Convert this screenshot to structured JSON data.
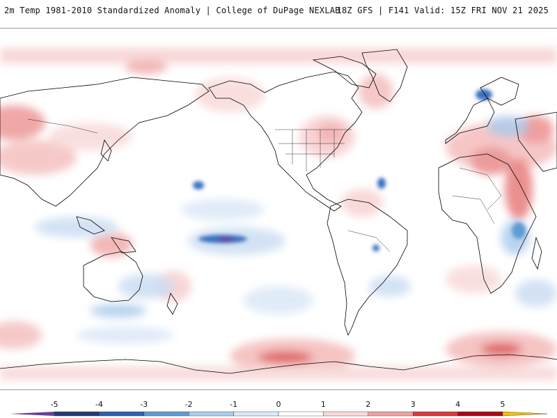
{
  "header": {
    "title": "2m Temp 1981-2010 Standardized Anomaly | College of DuPage NEXLAB",
    "run_info": "18Z GFS | F141 Valid: 15Z FRI NOV 21 2025"
  },
  "colorbar": {
    "ticks": [
      "-5",
      "-4",
      "-3",
      "-2",
      "-1",
      "0",
      "1",
      "2",
      "3",
      "4",
      "5"
    ],
    "colors": [
      "#6a3d9a",
      "#233a7a",
      "#2b62b0",
      "#5d9bd6",
      "#a9cdee",
      "#dde9f7",
      "#ffffff",
      "#fbdada",
      "#efa0a0",
      "#d83a3a",
      "#a80a18",
      "#7a0010",
      "#f2c200"
    ]
  },
  "map": {
    "ocean_color": "#ffffff",
    "coast_color": "#000000",
    "warm_color": "#e23b3b",
    "cold_color": "#3b7fd1"
  }
}
